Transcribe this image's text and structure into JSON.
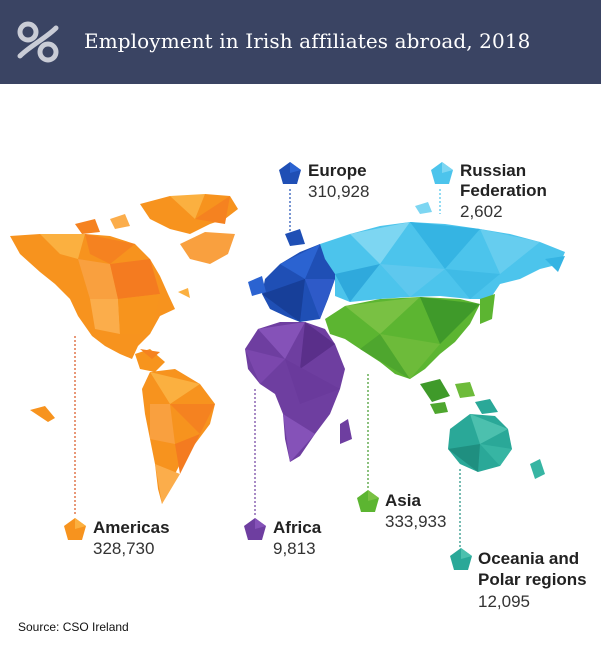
{
  "header": {
    "title": "Employment in Irish affiliates abroad, 2018",
    "logo_icon": "percent-logo-icon"
  },
  "colors": {
    "header_bg": "#3a4463",
    "americas": "#f7931e",
    "europe": "#1f4fb5",
    "russian_federation": "#4cc4ec",
    "asia": "#5cb531",
    "africa": "#6e3ea0",
    "oceania": "#2aa898"
  },
  "regions": [
    {
      "id": "americas",
      "label": "Americas",
      "value": "328,730"
    },
    {
      "id": "europe",
      "label": "Europe",
      "value": "310,928"
    },
    {
      "id": "russian_federation",
      "label": "Russian Federation",
      "label_lines": [
        "Russian",
        "Federation"
      ],
      "value": "2,602"
    },
    {
      "id": "asia",
      "label": "Asia",
      "value": "333,933"
    },
    {
      "id": "africa",
      "label": "Africa",
      "value": "9,813"
    },
    {
      "id": "oceania",
      "label": "Oceania and Polar regions",
      "label_lines": [
        "Oceania and",
        "Polar regions"
      ],
      "value": "12,095"
    }
  ],
  "source": "Source:  CSO Ireland"
}
